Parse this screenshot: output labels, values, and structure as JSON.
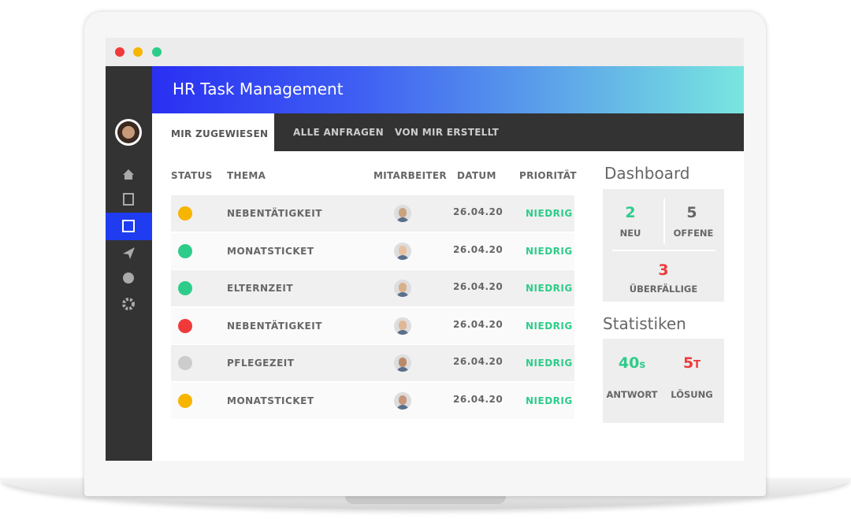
{
  "header": {
    "title": "HR Task Management"
  },
  "tabs": [
    "MIR ZUGEWIESEN",
    "ALLE ANFRAGEN",
    "VON MIR ERSTELLT"
  ],
  "table": {
    "columns": [
      "STATUS",
      "THEMA",
      "MITARBEITER",
      "DATUM",
      "PRIORITÄT"
    ],
    "rows": [
      {
        "status_color": "#f7b500",
        "topic": "NEBENTÄTIGKEIT",
        "date": "26.04.20",
        "priority": "NIEDRIG"
      },
      {
        "status_color": "#2ecc8a",
        "topic": "MONATSTICKET",
        "date": "26.04.20",
        "priority": "NIEDRIG"
      },
      {
        "status_color": "#2ecc8a",
        "topic": "ELTERNZEIT",
        "date": "26.04.20",
        "priority": "NIEDRIG"
      },
      {
        "status_color": "#f03a3a",
        "topic": "NEBENTÄTIGKEIT",
        "date": "26.04.20",
        "priority": "NIEDRIG"
      },
      {
        "status_color": "#cccccc",
        "topic": "PFLEGEZEIT",
        "date": "26.04.20",
        "priority": "NIEDRIG"
      },
      {
        "status_color": "#f7b500",
        "topic": "MONATSTICKET",
        "date": "26.04.20",
        "priority": "NIEDRIG"
      }
    ]
  },
  "dashboard": {
    "title": "Dashboard",
    "new": {
      "value": 2,
      "label": "NEU"
    },
    "open": {
      "value": 5,
      "label": "OFFENE"
    },
    "overdue": {
      "value": 3,
      "label": "ÜBERFÄLLIGE"
    }
  },
  "statistics": {
    "title": "Statistiken",
    "response": {
      "value": 40,
      "unit": "s",
      "label": "ANTWORT"
    },
    "solution": {
      "value": 5,
      "unit": "T",
      "label": "LÖSUNG"
    }
  }
}
